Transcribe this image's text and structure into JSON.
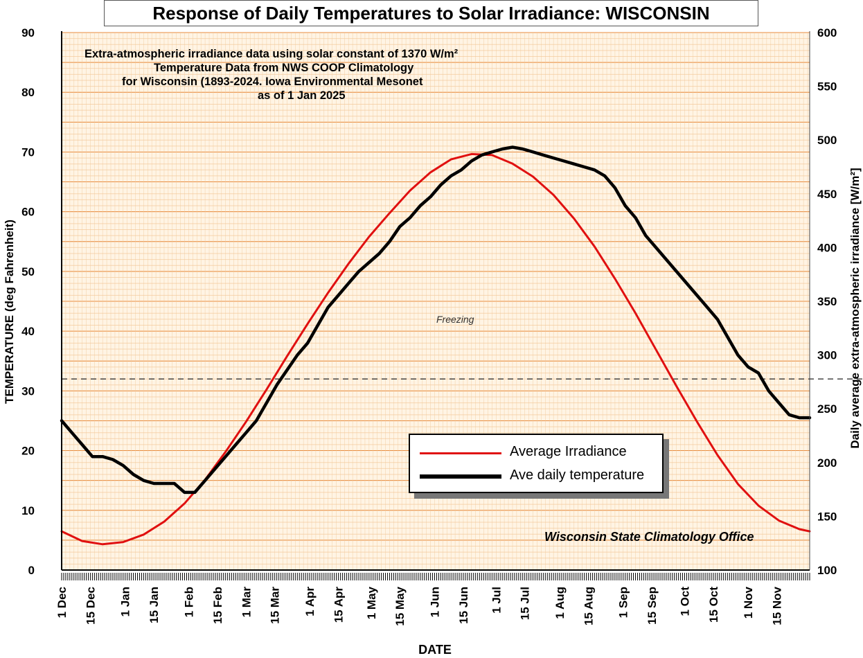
{
  "title": "Response of Daily Temperatures to Solar Irradiance: WISCONSIN",
  "notes": [
    "Extra-atmospheric irradiance data using solar constant of 1370 W/m²",
    "Temperature Data from NWS COOP Climatology",
    "for Wisconsin (1893-2024.   Iowa Environmental Mesonet",
    "as of 1 Jan 2025"
  ],
  "credit": "Wisconsin State Climatology Office",
  "chart_data": {
    "type": "line",
    "xlabel": "DATE",
    "ylabel": "TEMPERATURE (deg Fahrenheit)",
    "y2label": "Daily average extra-atmospheric irradiance [W/m²]",
    "ylim": [
      0,
      90
    ],
    "y2lim": [
      100,
      600
    ],
    "yticks": [
      "0",
      "10",
      "20",
      "30",
      "40",
      "50",
      "60",
      "70",
      "80",
      "90"
    ],
    "y2ticks": [
      "100",
      "150",
      "200",
      "250",
      "300",
      "350",
      "400",
      "450",
      "500",
      "550",
      "600"
    ],
    "xticks": [
      {
        "label": "1 Dec",
        "day": 0
      },
      {
        "label": "15 Dec",
        "day": 14
      },
      {
        "label": "1 Jan",
        "day": 31
      },
      {
        "label": "15 Jan",
        "day": 45
      },
      {
        "label": "1 Feb",
        "day": 62
      },
      {
        "label": "15 Feb",
        "day": 76
      },
      {
        "label": "1 Mar",
        "day": 90
      },
      {
        "label": "15 Mar",
        "day": 104
      },
      {
        "label": "1 Apr",
        "day": 121
      },
      {
        "label": "15 Apr",
        "day": 135
      },
      {
        "label": "1 May",
        "day": 151
      },
      {
        "label": "15 May",
        "day": 165
      },
      {
        "label": "1 Jun",
        "day": 182
      },
      {
        "label": "15 Jun",
        "day": 196
      },
      {
        "label": "1 Jul",
        "day": 212
      },
      {
        "label": "15 Jul",
        "day": 226
      },
      {
        "label": "1 Aug",
        "day": 243
      },
      {
        "label": "15 Aug",
        "day": 257
      },
      {
        "label": "1 Sep",
        "day": 274
      },
      {
        "label": "15 Sep",
        "day": 288
      },
      {
        "label": "1 Oct",
        "day": 304
      },
      {
        "label": "15 Oct",
        "day": 318
      },
      {
        "label": "1 Nov",
        "day": 335
      },
      {
        "label": "15 Nov",
        "day": 349
      }
    ],
    "xlim": [
      0,
      365
    ],
    "freezing": {
      "label": "Freezing",
      "value": 32
    },
    "legend_position": "center-right",
    "grid": true,
    "series": [
      {
        "name": "Average Irradiance",
        "axis": "right",
        "color": "#e01010",
        "x": [
          0,
          10,
          20,
          30,
          40,
          50,
          60,
          70,
          80,
          90,
          100,
          110,
          120,
          130,
          140,
          150,
          160,
          170,
          180,
          190,
          200,
          210,
          220,
          230,
          240,
          250,
          260,
          270,
          280,
          290,
          300,
          310,
          320,
          330,
          340,
          350,
          360,
          365
        ],
        "y": [
          136,
          127,
          124,
          126,
          133,
          145,
          162,
          184,
          210,
          238,
          268,
          299,
          329,
          358,
          385,
          410,
          432,
          453,
          470,
          482,
          487,
          486,
          478,
          466,
          449,
          427,
          401,
          371,
          339,
          305,
          271,
          238,
          207,
          180,
          160,
          146,
          138,
          136
        ]
      },
      {
        "name": "Ave daily temperature",
        "axis": "left",
        "color": "#000000",
        "x": [
          0,
          5,
          10,
          15,
          20,
          25,
          30,
          35,
          40,
          45,
          50,
          55,
          60,
          65,
          70,
          75,
          80,
          85,
          90,
          95,
          100,
          105,
          110,
          115,
          120,
          125,
          130,
          135,
          140,
          145,
          150,
          155,
          160,
          165,
          170,
          175,
          180,
          185,
          190,
          195,
          200,
          205,
          210,
          215,
          220,
          225,
          230,
          235,
          240,
          245,
          250,
          255,
          260,
          265,
          270,
          275,
          280,
          285,
          290,
          295,
          300,
          305,
          310,
          315,
          320,
          325,
          330,
          335,
          340,
          345,
          350,
          355,
          360,
          365
        ],
        "y": [
          25,
          23,
          21,
          19,
          19,
          18.5,
          17.5,
          16,
          15,
          14.5,
          14.5,
          14.5,
          13,
          13,
          15,
          17,
          19,
          21,
          23,
          25,
          28,
          31,
          33.5,
          36,
          38,
          41,
          44,
          46,
          48,
          50,
          51.5,
          53,
          55,
          57.5,
          59,
          61,
          62.5,
          64.5,
          66,
          67,
          68.5,
          69.5,
          70,
          70.5,
          70.8,
          70.5,
          70,
          69.5,
          69,
          68.5,
          68,
          67.5,
          67,
          66,
          64,
          61,
          59,
          56,
          54,
          52,
          50,
          48,
          46,
          44,
          42,
          39,
          36,
          34,
          33,
          30,
          28,
          26,
          25.5,
          25.5
        ]
      }
    ]
  }
}
